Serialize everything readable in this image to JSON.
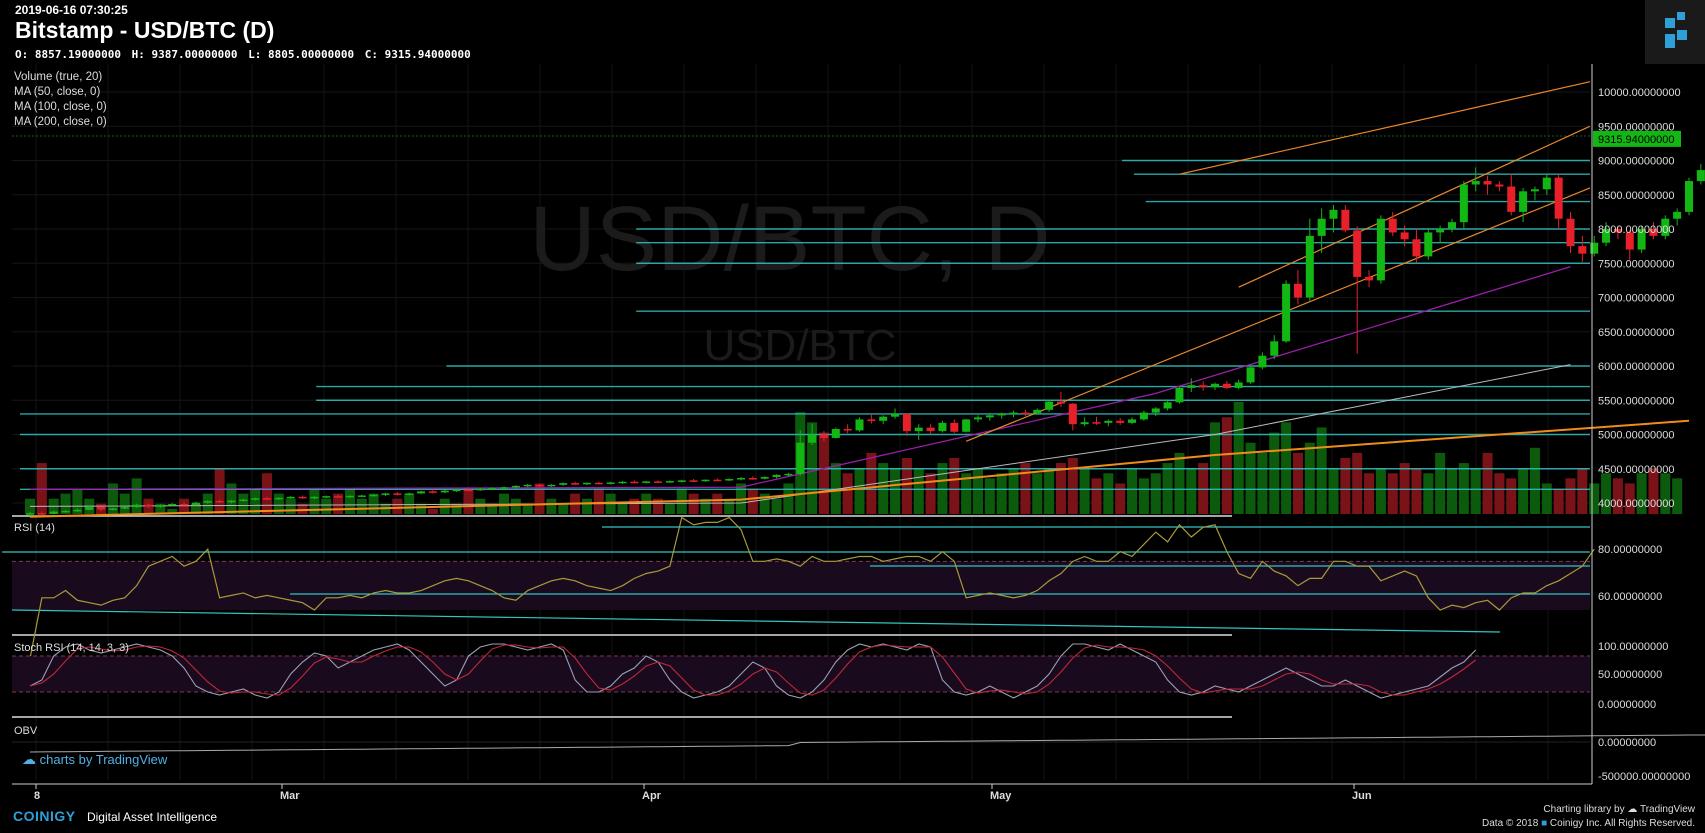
{
  "header": {
    "timestamp": "2019-06-16 07:30:25",
    "title": "Bitstamp - USD/BTC (D)",
    "ohlc": {
      "o": "O: 8857.19000000",
      "h": "H: 9387.00000000",
      "l": "L: 8805.00000000",
      "c": "C: 9315.94000000"
    }
  },
  "indicators": [
    "Volume (true, 20)",
    "MA (50, close, 0)",
    "MA (100, close, 0)",
    "MA (200, close, 0)"
  ],
  "watermark": {
    "big": "USD/BTC, D",
    "small": "USD/BTC"
  },
  "panels": {
    "rsi": "RSI (14)",
    "stoch": "Stoch RSI (14, 14, 3, 3)",
    "obv": "OBV"
  },
  "price_label": "9315.94000000",
  "tv_badge": "charts by TradingView",
  "footer": {
    "brand": "COINIGY",
    "tagline": "Digital Asset Intelligence",
    "lib": "Charting library by",
    "lib_name": "TradingView",
    "copyright": "Data © 2018",
    "copyright2": "Coinigy Inc. All Rights Reserved."
  },
  "colors": {
    "up": "#13b713",
    "down": "#e8202a",
    "channel": "#e8872a",
    "hline": "#33c3c3",
    "ma50": "#9a1fa8",
    "ma100": "#bbbbbb",
    "ma200": "#f08c1a"
  },
  "chart_data": {
    "type": "candlestick",
    "x_ticks": [
      "8",
      "Mar",
      "Apr",
      "May",
      "Jun"
    ],
    "price_ticks": [
      4000,
      4500,
      5000,
      5500,
      6000,
      6500,
      7000,
      7500,
      8000,
      8500,
      9000,
      9500,
      10000
    ],
    "price_tick_labels": [
      "4000.00000000",
      "4500.00000000",
      "5000.00000000",
      "5500.00000000",
      "6000.00000000",
      "6500.00000000",
      "7000.00000000",
      "7500.00000000",
      "8000.00000000",
      "8500.00000000",
      "9000.00000000",
      "9500.00000000",
      "10000.00000000"
    ],
    "rsi_ticks": [
      "80.00000000",
      "60.00000000"
    ],
    "stoch_ticks": [
      "100.00000000",
      "50.00000000",
      "0.00000000"
    ],
    "obv_ticks": [
      "0.00000000",
      "-500000.00000000"
    ],
    "last_close": 9315.94,
    "candles": [
      [
        3835,
        3870,
        3810,
        3850
      ],
      [
        3850,
        3880,
        3830,
        3840
      ],
      [
        3840,
        3890,
        3835,
        3875
      ],
      [
        3875,
        3900,
        3860,
        3885
      ],
      [
        3885,
        3920,
        3870,
        3900
      ],
      [
        3900,
        3960,
        3890,
        3940
      ],
      [
        3940,
        3950,
        3880,
        3905
      ],
      [
        3905,
        3930,
        3890,
        3920
      ],
      [
        3920,
        3950,
        3905,
        3940
      ],
      [
        3940,
        3990,
        3930,
        3975
      ],
      [
        3975,
        3990,
        3930,
        3950
      ],
      [
        3950,
        3980,
        3930,
        3965
      ],
      [
        3965,
        4000,
        3950,
        3985
      ],
      [
        3985,
        4010,
        3960,
        3970
      ],
      [
        3970,
        4020,
        3960,
        4005
      ],
      [
        4005,
        4040,
        3990,
        4030
      ],
      [
        4030,
        4050,
        4000,
        4010
      ],
      [
        4010,
        4045,
        3995,
        4035
      ],
      [
        4035,
        4060,
        4020,
        4050
      ],
      [
        4050,
        4080,
        4035,
        4070
      ],
      [
        4070,
        4090,
        4040,
        4055
      ],
      [
        4055,
        4085,
        4045,
        4075
      ],
      [
        4075,
        4100,
        4060,
        4090
      ],
      [
        4090,
        4110,
        4060,
        4070
      ],
      [
        4070,
        4100,
        4055,
        4090
      ],
      [
        4090,
        4110,
        4075,
        4100
      ],
      [
        4100,
        4120,
        4080,
        4090
      ],
      [
        4090,
        4110,
        4075,
        4105
      ],
      [
        4105,
        4120,
        4090,
        4110
      ],
      [
        4110,
        4130,
        4095,
        4120
      ],
      [
        4120,
        4150,
        4100,
        4140
      ],
      [
        4140,
        4160,
        4110,
        4125
      ],
      [
        4125,
        4150,
        4110,
        4140
      ],
      [
        4140,
        4180,
        4130,
        4170
      ],
      [
        4170,
        4200,
        4140,
        4155
      ],
      [
        4155,
        4190,
        4145,
        4180
      ],
      [
        4180,
        4210,
        4160,
        4195
      ],
      [
        4195,
        4220,
        4170,
        4185
      ],
      [
        4185,
        4220,
        4175,
        4210
      ],
      [
        4210,
        4230,
        4190,
        4220
      ],
      [
        4220,
        4240,
        4200,
        4230
      ],
      [
        4230,
        4260,
        4210,
        4250
      ],
      [
        4250,
        4280,
        4230,
        4265
      ],
      [
        4265,
        4280,
        4230,
        4245
      ],
      [
        4245,
        4275,
        4235,
        4265
      ],
      [
        4265,
        4300,
        4250,
        4290
      ],
      [
        4290,
        4310,
        4260,
        4275
      ],
      [
        4275,
        4300,
        4260,
        4295
      ],
      [
        4295,
        4310,
        4270,
        4285
      ],
      [
        4285,
        4310,
        4270,
        4300
      ],
      [
        4300,
        4320,
        4280,
        4310
      ],
      [
        4310,
        4330,
        4290,
        4300
      ],
      [
        4300,
        4320,
        4285,
        4315
      ],
      [
        4315,
        4330,
        4290,
        4305
      ],
      [
        4305,
        4330,
        4295,
        4320
      ],
      [
        4320,
        4340,
        4300,
        4330
      ],
      [
        4330,
        4350,
        4310,
        4325
      ],
      [
        4325,
        4345,
        4310,
        4340
      ],
      [
        4340,
        4360,
        4320,
        4335
      ],
      [
        4335,
        4360,
        4320,
        4350
      ],
      [
        4350,
        4380,
        4330,
        4365
      ],
      [
        4365,
        4390,
        4340,
        4355
      ],
      [
        4355,
        4390,
        4345,
        4380
      ],
      [
        4380,
        4420,
        4360,
        4410
      ],
      [
        4410,
        4440,
        4390,
        4425
      ],
      [
        4425,
        5060,
        4400,
        4880
      ],
      [
        4880,
        5160,
        4850,
        5000
      ],
      [
        5000,
        5050,
        4900,
        4950
      ],
      [
        4950,
        5100,
        4940,
        5080
      ],
      [
        5080,
        5150,
        5020,
        5060
      ],
      [
        5060,
        5250,
        5040,
        5220
      ],
      [
        5220,
        5300,
        5160,
        5200
      ],
      [
        5200,
        5280,
        5150,
        5260
      ],
      [
        5260,
        5380,
        5230,
        5300
      ],
      [
        5300,
        5310,
        4980,
        5050
      ],
      [
        5050,
        5150,
        4920,
        5100
      ],
      [
        5100,
        5150,
        5000,
        5050
      ],
      [
        5050,
        5200,
        5030,
        5170
      ],
      [
        5170,
        5220,
        5020,
        5040
      ],
      [
        5040,
        5230,
        5030,
        5220
      ],
      [
        5220,
        5280,
        5180,
        5250
      ],
      [
        5250,
        5310,
        5200,
        5280
      ],
      [
        5280,
        5320,
        5230,
        5300
      ],
      [
        5300,
        5350,
        5250,
        5320
      ],
      [
        5320,
        5360,
        5270,
        5310
      ],
      [
        5310,
        5380,
        5290,
        5360
      ],
      [
        5360,
        5500,
        5330,
        5480
      ],
      [
        5480,
        5620,
        5400,
        5450
      ],
      [
        5450,
        5460,
        5060,
        5150
      ],
      [
        5150,
        5250,
        5120,
        5180
      ],
      [
        5180,
        5260,
        5140,
        5170
      ],
      [
        5170,
        5220,
        5120,
        5200
      ],
      [
        5200,
        5240,
        5140,
        5170
      ],
      [
        5170,
        5250,
        5150,
        5220
      ],
      [
        5220,
        5350,
        5200,
        5320
      ],
      [
        5320,
        5400,
        5270,
        5380
      ],
      [
        5380,
        5500,
        5350,
        5470
      ],
      [
        5470,
        5700,
        5450,
        5680
      ],
      [
        5680,
        5820,
        5620,
        5720
      ],
      [
        5720,
        5780,
        5640,
        5690
      ],
      [
        5690,
        5760,
        5650,
        5740
      ],
      [
        5740,
        5780,
        5660,
        5680
      ],
      [
        5680,
        5800,
        5660,
        5760
      ],
      [
        5760,
        6000,
        5740,
        5980
      ],
      [
        5980,
        6200,
        5950,
        6150
      ],
      [
        6150,
        6450,
        6100,
        6360
      ],
      [
        6360,
        7250,
        6340,
        7200
      ],
      [
        7200,
        7400,
        6900,
        7000
      ],
      [
        7000,
        8150,
        6950,
        7900
      ],
      [
        7900,
        8300,
        7650,
        8150
      ],
      [
        8150,
        8350,
        7950,
        8280
      ],
      [
        8280,
        8350,
        7950,
        7980
      ],
      [
        7980,
        8040,
        6180,
        7300
      ],
      [
        7300,
        7400,
        7150,
        7250
      ],
      [
        7250,
        8200,
        7200,
        8150
      ],
      [
        8150,
        8250,
        7900,
        7950
      ],
      [
        7950,
        8050,
        7750,
        7850
      ],
      [
        7850,
        8000,
        7500,
        7600
      ],
      [
        7600,
        8000,
        7550,
        7950
      ],
      [
        7950,
        8050,
        7800,
        8000
      ],
      [
        8000,
        8150,
        7950,
        8100
      ],
      [
        8100,
        8700,
        8000,
        8650
      ],
      [
        8650,
        8900,
        8550,
        8700
      ],
      [
        8700,
        8780,
        8500,
        8650
      ],
      [
        8650,
        8700,
        8550,
        8620
      ],
      [
        8620,
        8800,
        8200,
        8250
      ],
      [
        8250,
        8600,
        8100,
        8550
      ],
      [
        8550,
        8620,
        8420,
        8580
      ],
      [
        8580,
        8800,
        8500,
        8750
      ],
      [
        8750,
        8800,
        8000,
        8150
      ],
      [
        8150,
        8250,
        7650,
        7750
      ],
      [
        7750,
        7900,
        7520,
        7640
      ],
      [
        7640,
        7900,
        7600,
        7800
      ],
      [
        7800,
        8100,
        7750,
        8000
      ],
      [
        8000,
        8050,
        7850,
        7950
      ],
      [
        7950,
        7980,
        7550,
        7700
      ],
      [
        7700,
        8050,
        7650,
        8000
      ],
      [
        8000,
        8100,
        7850,
        7900
      ],
      [
        7900,
        8200,
        7850,
        8150
      ],
      [
        8150,
        8300,
        8050,
        8250
      ],
      [
        8250,
        8750,
        8200,
        8700
      ],
      [
        8700,
        8950,
        8650,
        8860
      ],
      [
        8860,
        9387,
        8805,
        9316
      ]
    ],
    "ma50": [
      [
        0,
        4200
      ],
      [
        60,
        4230
      ],
      [
        95,
        5600
      ],
      [
        130,
        7450
      ]
    ],
    "ma100": [
      [
        0,
        3950
      ],
      [
        60,
        4000
      ],
      [
        100,
        5000
      ],
      [
        130,
        6020
      ]
    ],
    "ma200": [
      [
        0,
        3800
      ],
      [
        60,
        4050
      ],
      [
        100,
        4700
      ],
      [
        140,
        5200
      ]
    ],
    "channel": {
      "upper": [
        [
          97,
          8800
        ],
        [
          140,
          10150
        ]
      ],
      "mid": [
        [
          102,
          7150
        ],
        [
          140,
          9500
        ]
      ],
      "lower": [
        [
          79,
          4900
        ],
        [
          140,
          8600
        ]
      ]
    },
    "support_resistance": [
      {
        "price": 9000,
        "from": 93
      },
      {
        "price": 8800,
        "from": 94
      },
      {
        "price": 8400,
        "from": 95
      },
      {
        "price": 8000,
        "from": 52
      },
      {
        "price": 7800,
        "from": 52
      },
      {
        "price": 7500,
        "from": 52
      },
      {
        "price": 6800,
        "from": 52
      },
      {
        "price": 6000,
        "from": 36
      },
      {
        "price": 5700,
        "from": 25
      },
      {
        "price": 5500,
        "from": 25
      },
      {
        "price": 5300,
        "from": 0
      },
      {
        "price": 5000,
        "from": 0
      },
      {
        "price": 4500,
        "from": 0
      },
      {
        "price": 4200,
        "from": 0
      }
    ],
    "volume": [
      3,
      10,
      3,
      4,
      5,
      3,
      2,
      6,
      4,
      7,
      3,
      2,
      1,
      3,
      2,
      4,
      9,
      6,
      4,
      5,
      8,
      4,
      3,
      2,
      5,
      3,
      4,
      5,
      3,
      4,
      2,
      3,
      4,
      2,
      1,
      3,
      2,
      5,
      3,
      2,
      4,
      3,
      2,
      6,
      3,
      2,
      4,
      3,
      5,
      4,
      2,
      3,
      4,
      3,
      2,
      5,
      4,
      3,
      4,
      3,
      6,
      5,
      4,
      3,
      6,
      20,
      18,
      16,
      10,
      8,
      9,
      12,
      10,
      9,
      11,
      9,
      8,
      10,
      11,
      8,
      9,
      7,
      8,
      9,
      10,
      8,
      9,
      10,
      11,
      9,
      7,
      8,
      6,
      9,
      7,
      8,
      10,
      12,
      9,
      10,
      18,
      19,
      22,
      14,
      12,
      16,
      18,
      12,
      14,
      17,
      9,
      11,
      12,
      8,
      9,
      8,
      10,
      9,
      8,
      12,
      9,
      10,
      9,
      12,
      8,
      7,
      9,
      13,
      6,
      5,
      7,
      9,
      6,
      8,
      7,
      6,
      8,
      9,
      8,
      7
    ],
    "rsi": [
      30,
      55,
      55,
      58,
      54,
      53,
      52,
      54,
      55,
      60,
      68,
      70,
      72,
      68,
      70,
      75,
      55,
      56,
      57,
      55,
      56,
      55,
      54,
      53,
      50,
      55,
      55,
      56,
      55,
      57,
      58,
      57,
      57,
      58,
      60,
      62,
      63,
      62,
      60,
      58,
      55,
      54,
      58,
      60,
      62,
      63,
      62,
      60,
      59,
      58,
      60,
      63,
      65,
      66,
      68,
      88,
      85,
      86,
      86,
      88,
      83,
      70,
      70,
      71,
      70,
      68,
      72,
      70,
      70,
      71,
      72,
      72,
      70,
      71,
      72,
      72,
      70,
      74,
      70,
      55,
      56,
      57,
      56,
      55,
      56,
      58,
      62,
      65,
      70,
      72,
      70,
      70,
      74,
      72,
      77,
      82,
      78,
      85,
      80,
      84,
      85,
      74,
      65,
      63,
      70,
      66,
      64,
      60,
      63,
      63,
      70,
      70,
      68,
      68,
      62,
      64,
      66,
      64,
      55,
      50,
      52,
      51,
      53,
      54,
      50,
      55,
      57,
      57,
      60,
      62,
      65,
      68,
      75
    ],
    "stoch": [
      30,
      40,
      80,
      95,
      100,
      90,
      85,
      90,
      95,
      100,
      95,
      90,
      80,
      60,
      30,
      20,
      15,
      20,
      25,
      15,
      10,
      20,
      50,
      70,
      85,
      80,
      60,
      70,
      80,
      90,
      95,
      100,
      90,
      70,
      50,
      30,
      40,
      80,
      95,
      100,
      100,
      95,
      90,
      95,
      100,
      90,
      40,
      20,
      20,
      30,
      50,
      60,
      80,
      70,
      40,
      20,
      10,
      15,
      20,
      30,
      50,
      70,
      60,
      30,
      15,
      10,
      20,
      40,
      70,
      90,
      100,
      95,
      100,
      95,
      90,
      100,
      95,
      40,
      20,
      15,
      20,
      30,
      20,
      10,
      20,
      30,
      50,
      80,
      100,
      100,
      95,
      90,
      100,
      90,
      80,
      70,
      40,
      20,
      15,
      20,
      30,
      25,
      20,
      30,
      40,
      50,
      60,
      50,
      40,
      30,
      30,
      40,
      30,
      20,
      10,
      15,
      20,
      25,
      30,
      45,
      60,
      70,
      90
    ]
  }
}
